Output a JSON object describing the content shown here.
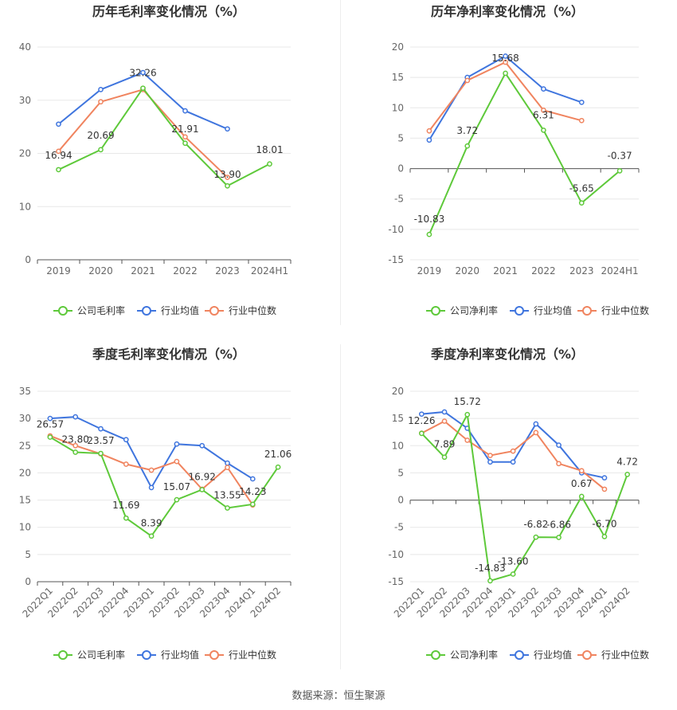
{
  "source": "数据来源：恒生聚源",
  "colors": {
    "company": "#5ec93a",
    "industry_avg": "#3f75de",
    "industry_median": "#f0845f",
    "grid": "#e8e8e8",
    "axis": "#555555"
  },
  "chart_data": [
    {
      "type": "line",
      "title": "历年毛利率变化情况（%）",
      "categories": [
        "2019",
        "2020",
        "2021",
        "2022",
        "2023",
        "2024H1"
      ],
      "ylim": [
        0,
        40
      ],
      "yticks": [
        0,
        10,
        20,
        30,
        40
      ],
      "series": [
        {
          "name": "公司毛利率",
          "color": "#5ec93a",
          "labels": true,
          "values": [
            16.94,
            20.69,
            32.26,
            21.91,
            13.9,
            18.01
          ]
        },
        {
          "name": "行业均值",
          "color": "#3f75de",
          "values": [
            25.5,
            32.0,
            35.2,
            28.0,
            24.6,
            null
          ]
        },
        {
          "name": "行业中位数",
          "color": "#f0845f",
          "values": [
            20.4,
            29.7,
            32.0,
            23.1,
            15.5,
            null
          ]
        }
      ]
    },
    {
      "type": "line",
      "title": "历年净利率变化情况（%）",
      "categories": [
        "2019",
        "2020",
        "2021",
        "2022",
        "2023",
        "2024H1"
      ],
      "ylim": [
        -15,
        20
      ],
      "yticks": [
        -15,
        -10,
        -5,
        0,
        5,
        10,
        15,
        20
      ],
      "series": [
        {
          "name": "公司净利率",
          "color": "#5ec93a",
          "labels": true,
          "values": [
            -10.83,
            3.72,
            15.68,
            6.31,
            -5.65,
            -0.37
          ]
        },
        {
          "name": "行业均值",
          "color": "#3f75de",
          "values": [
            4.7,
            15.0,
            18.5,
            13.1,
            10.9,
            null
          ]
        },
        {
          "name": "行业中位数",
          "color": "#f0845f",
          "values": [
            6.2,
            14.5,
            17.5,
            9.6,
            7.9,
            null
          ]
        }
      ]
    },
    {
      "type": "line",
      "title": "季度毛利率变化情况（%）",
      "categories": [
        "2022Q1",
        "2022Q2",
        "2022Q3",
        "2022Q4",
        "2023Q1",
        "2023Q2",
        "2023Q3",
        "2023Q4",
        "2024Q1",
        "2024Q2"
      ],
      "ylim": [
        0,
        35
      ],
      "yticks": [
        0,
        5,
        10,
        15,
        20,
        25,
        30,
        35
      ],
      "series": [
        {
          "name": "公司毛利率",
          "color": "#5ec93a",
          "labels": true,
          "values": [
            26.57,
            23.8,
            23.57,
            11.69,
            8.39,
            15.07,
            16.92,
            13.55,
            14.23,
            21.06
          ]
        },
        {
          "name": "行业均值",
          "color": "#3f75de",
          "values": [
            30.0,
            30.3,
            28.1,
            26.1,
            17.3,
            25.3,
            25.0,
            21.8,
            18.9,
            null
          ]
        },
        {
          "name": "行业中位数",
          "color": "#f0845f",
          "values": [
            26.8,
            25.0,
            23.5,
            21.6,
            20.5,
            22.1,
            17.0,
            21.0,
            14.1,
            null
          ]
        }
      ]
    },
    {
      "type": "line",
      "title": "季度净利率变化情况（%）",
      "categories": [
        "2022Q1",
        "2022Q2",
        "2022Q3",
        "2022Q4",
        "2023Q1",
        "2023Q2",
        "2023Q3",
        "2023Q4",
        "2024Q1",
        "2024Q2"
      ],
      "ylim": [
        -15,
        20
      ],
      "yticks": [
        -15,
        -10,
        -5,
        0,
        5,
        10,
        15,
        20
      ],
      "series": [
        {
          "name": "公司净利率",
          "color": "#5ec93a",
          "labels": true,
          "values": [
            12.26,
            7.89,
            15.72,
            -14.83,
            -13.6,
            -6.82,
            -6.86,
            0.67,
            -6.7,
            4.72
          ]
        },
        {
          "name": "行业均值",
          "color": "#3f75de",
          "values": [
            15.8,
            16.2,
            13.2,
            7.0,
            7.0,
            14.0,
            10.1,
            5.0,
            4.1,
            null
          ]
        },
        {
          "name": "行业中位数",
          "color": "#f0845f",
          "values": [
            12.3,
            14.5,
            11.0,
            8.2,
            9.0,
            12.4,
            6.7,
            5.4,
            2.0,
            null
          ]
        }
      ]
    }
  ]
}
